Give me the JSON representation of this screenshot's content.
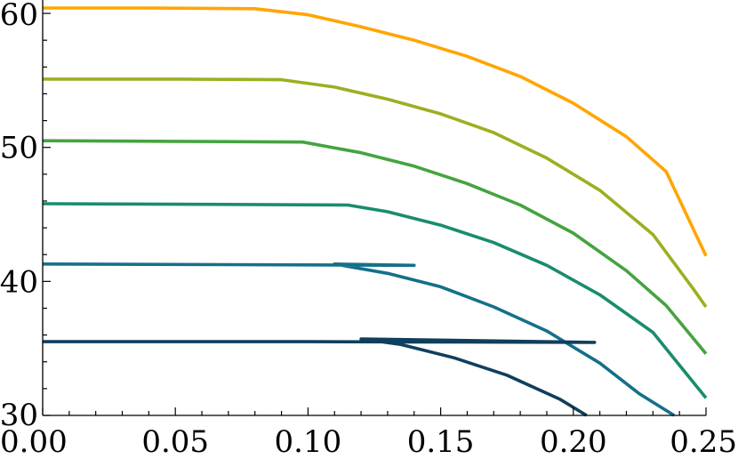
{
  "chart_data": {
    "type": "line",
    "title": "",
    "xlabel": "",
    "ylabel": "",
    "xlim": [
      0.0,
      0.25
    ],
    "ylim": [
      30,
      61
    ],
    "grid": false,
    "legend": "none",
    "x_ticks": [
      {
        "value": 0.0,
        "label": "0.00"
      },
      {
        "value": 0.05,
        "label": "0.05"
      },
      {
        "value": 0.1,
        "label": "0.10"
      },
      {
        "value": 0.15,
        "label": "0.15"
      },
      {
        "value": 0.2,
        "label": "0.20"
      },
      {
        "value": 0.25,
        "label": "0.25"
      }
    ],
    "x_minor_step": 0.01,
    "y_ticks": [
      {
        "value": 30,
        "label": "30"
      },
      {
        "value": 40,
        "label": "40"
      },
      {
        "value": 50,
        "label": "50"
      },
      {
        "value": 60,
        "label": "60"
      }
    ],
    "y_minor_step": 2,
    "series": [
      {
        "color": "#ffa500",
        "points": [
          [
            0.0,
            60.4
          ],
          [
            0.04,
            60.4
          ],
          [
            0.08,
            60.35
          ],
          [
            0.1,
            59.9
          ],
          [
            0.12,
            59.0
          ],
          [
            0.14,
            58.0
          ],
          [
            0.16,
            56.8
          ],
          [
            0.18,
            55.3
          ],
          [
            0.2,
            53.3
          ],
          [
            0.22,
            50.8
          ],
          [
            0.235,
            48.2
          ],
          [
            0.25,
            41.9
          ]
        ]
      },
      {
        "color": "#9eae22",
        "points": [
          [
            0.0,
            55.1
          ],
          [
            0.05,
            55.1
          ],
          [
            0.09,
            55.05
          ],
          [
            0.11,
            54.5
          ],
          [
            0.13,
            53.6
          ],
          [
            0.15,
            52.5
          ],
          [
            0.17,
            51.1
          ],
          [
            0.19,
            49.2
          ],
          [
            0.21,
            46.8
          ],
          [
            0.23,
            43.5
          ],
          [
            0.245,
            39.5
          ],
          [
            0.25,
            38.1
          ]
        ]
      },
      {
        "color": "#45a340",
        "points": [
          [
            0.0,
            50.5
          ],
          [
            0.05,
            50.45
          ],
          [
            0.098,
            50.4
          ],
          [
            0.12,
            49.6
          ],
          [
            0.14,
            48.6
          ],
          [
            0.16,
            47.3
          ],
          [
            0.18,
            45.7
          ],
          [
            0.2,
            43.6
          ],
          [
            0.22,
            40.8
          ],
          [
            0.235,
            38.2
          ],
          [
            0.25,
            34.6
          ]
        ]
      },
      {
        "color": "#1a8c6e",
        "points": [
          [
            0.0,
            45.8
          ],
          [
            0.06,
            45.75
          ],
          [
            0.115,
            45.7
          ],
          [
            0.13,
            45.2
          ],
          [
            0.15,
            44.2
          ],
          [
            0.17,
            42.9
          ],
          [
            0.19,
            41.2
          ],
          [
            0.21,
            39.0
          ],
          [
            0.23,
            36.2
          ],
          [
            0.25,
            31.3
          ]
        ]
      },
      {
        "color": "#15708a",
        "points": [
          [
            0.0,
            41.3
          ],
          [
            0.07,
            41.25
          ],
          [
            0.14,
            41.2
          ],
          [
            0.11,
            41.3
          ],
          [
            0.13,
            40.6
          ],
          [
            0.15,
            39.6
          ],
          [
            0.17,
            38.1
          ],
          [
            0.19,
            36.3
          ],
          [
            0.21,
            33.9
          ],
          [
            0.225,
            31.6
          ],
          [
            0.238,
            30.0
          ]
        ]
      },
      {
        "color": "#0f3f5c",
        "points": [
          [
            0.0,
            35.5
          ],
          [
            0.1,
            35.5
          ],
          [
            0.208,
            35.45
          ],
          [
            0.12,
            35.7
          ],
          [
            0.135,
            35.3
          ],
          [
            0.155,
            34.3
          ],
          [
            0.175,
            33.0
          ],
          [
            0.195,
            31.2
          ],
          [
            0.205,
            30.0
          ]
        ]
      }
    ]
  }
}
